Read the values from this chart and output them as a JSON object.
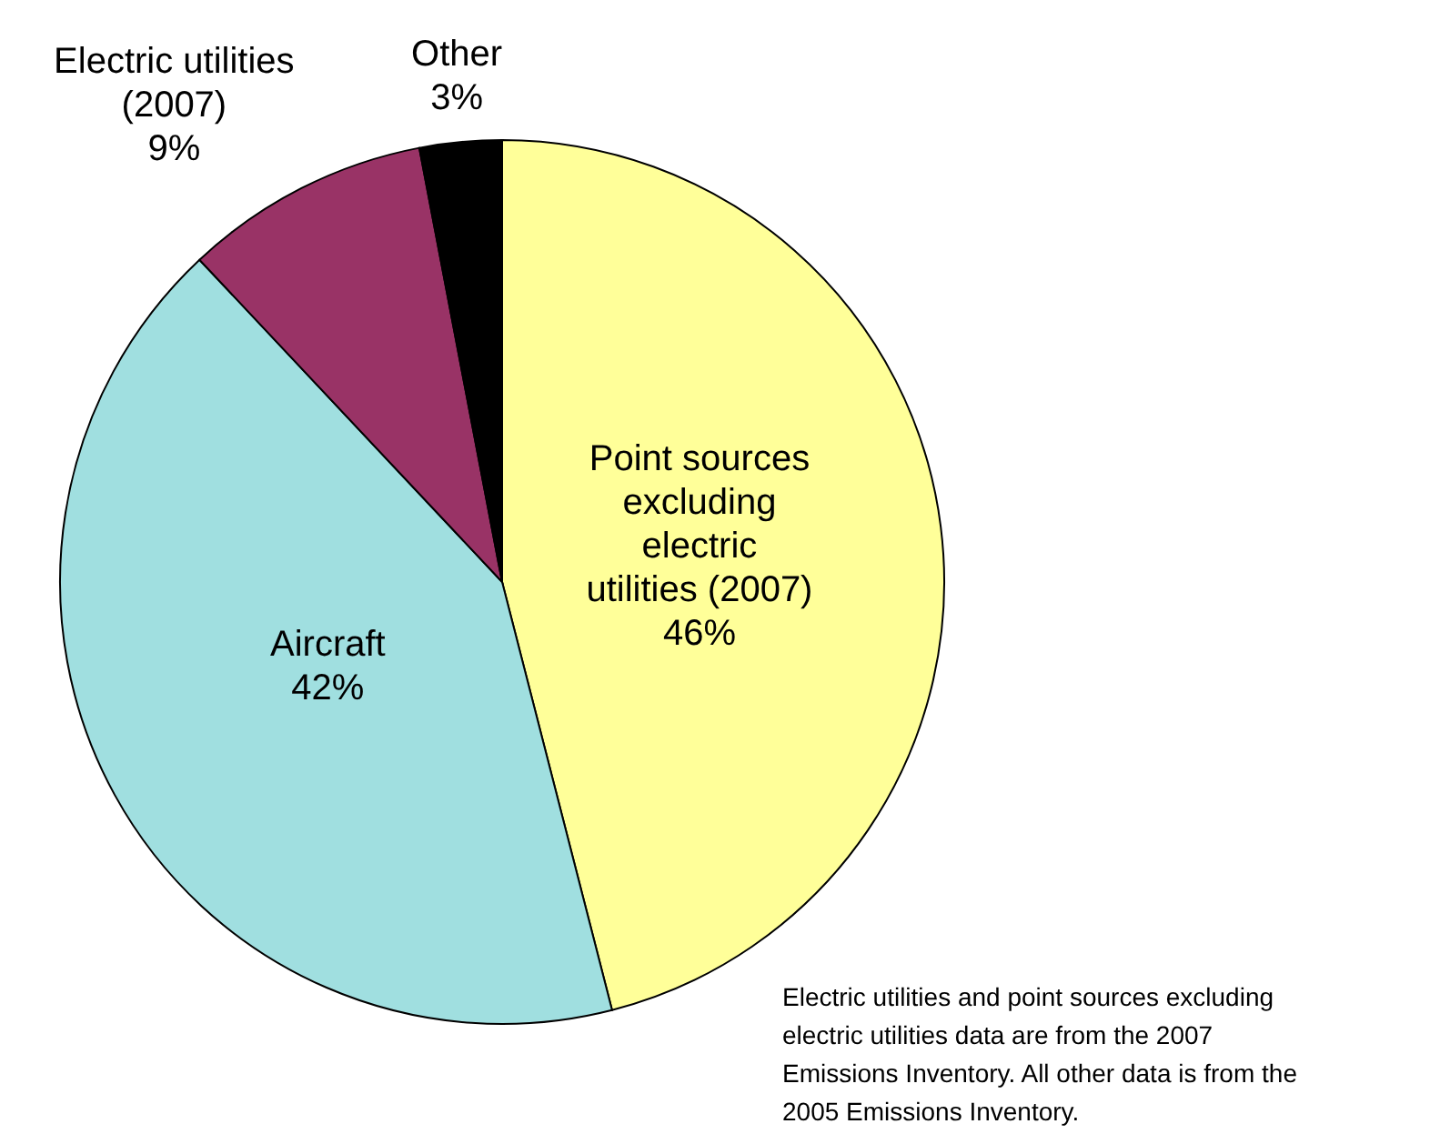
{
  "chart_data": {
    "type": "pie",
    "categories": [
      "Point sources excluding electric utilities (2007)",
      "Aircraft",
      "Electric utilities (2007)",
      "Other"
    ],
    "values": [
      46,
      42,
      9,
      3
    ],
    "colors": [
      "#ffff99",
      "#a0dfe0",
      "#993366",
      "#000000"
    ],
    "value_labels": [
      "46%",
      "42%",
      "9%",
      "3%"
    ],
    "annotations": [
      "Electric utilities and point sources excluding electric utilities data are from the 2007 Emissions Inventory. All other data is from the 2005 Emissions Inventory."
    ]
  }
}
